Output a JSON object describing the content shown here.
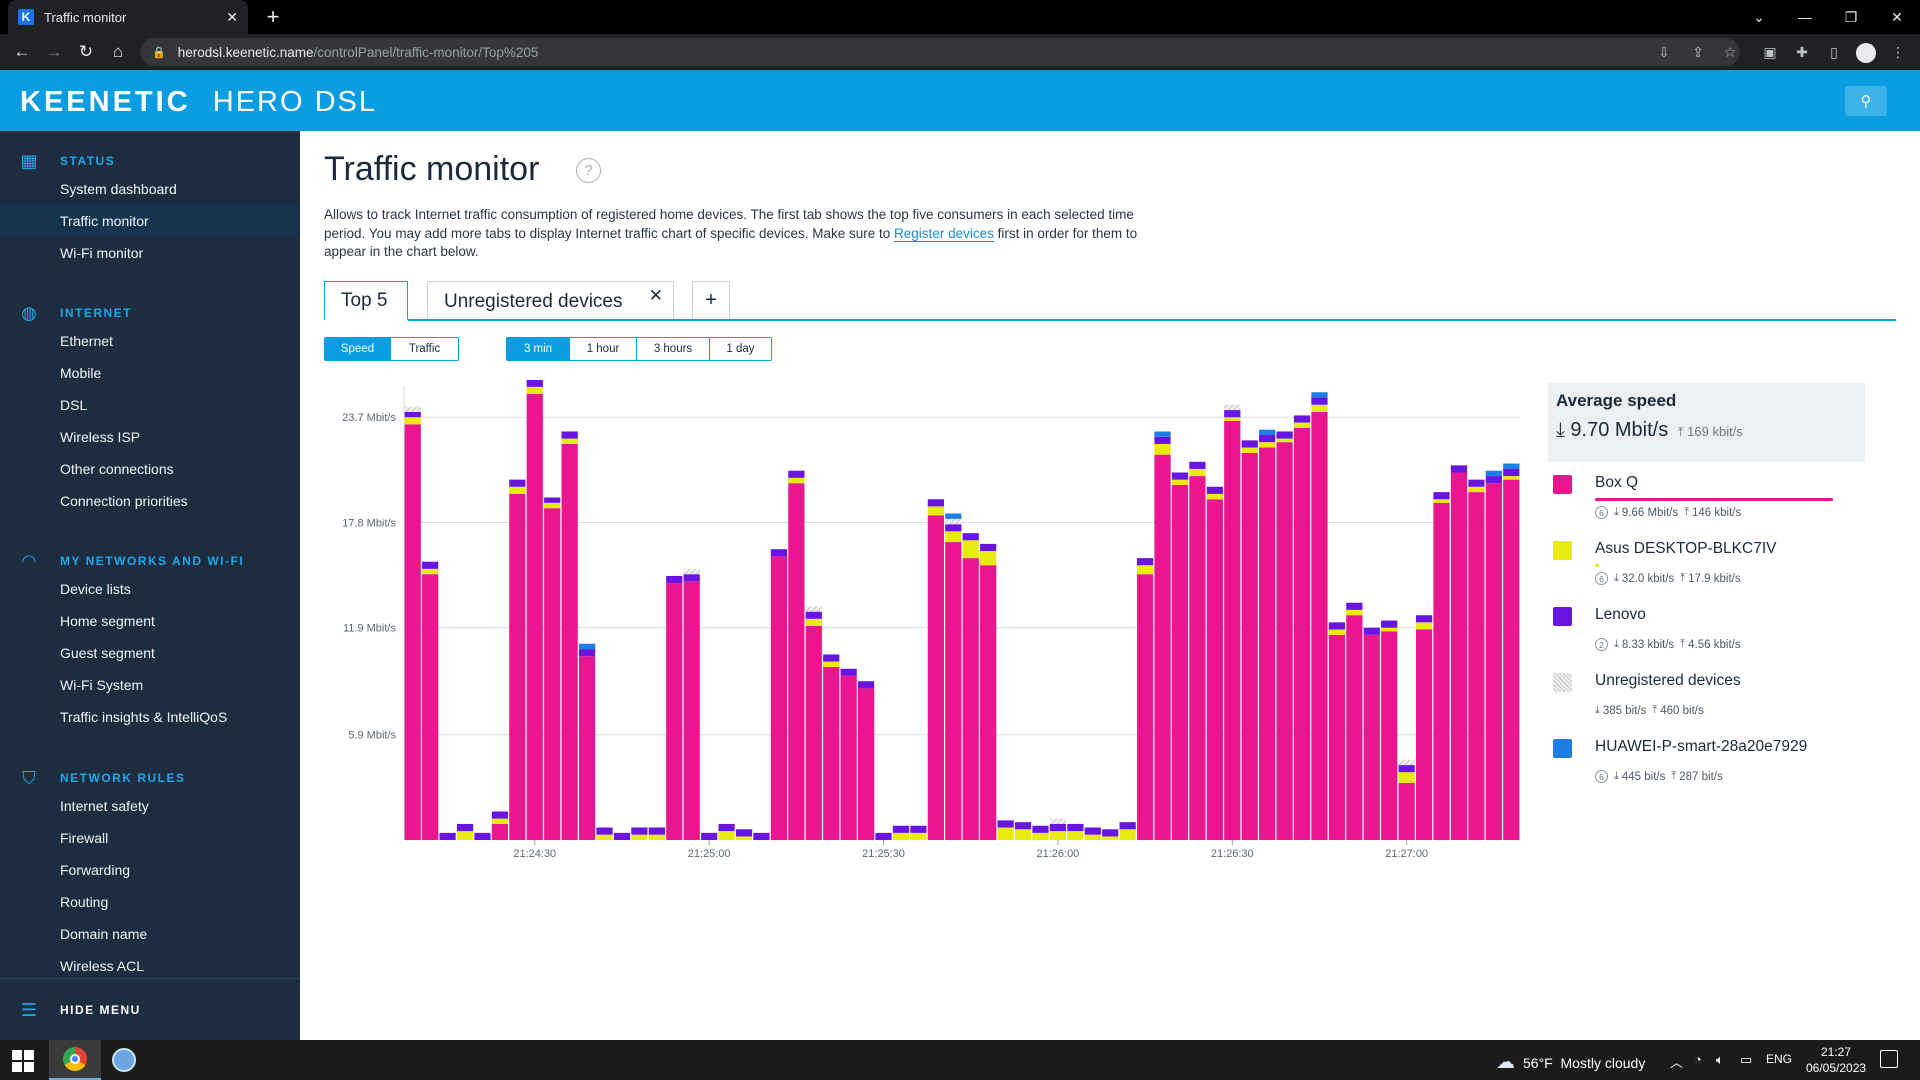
{
  "browser": {
    "tab_title": "Traffic monitor",
    "favicon_letter": "K",
    "tab_close": "✕",
    "new_tab": "+",
    "url_host": "herodsl.keenetic.name",
    "url_path": "/controlPanel/traffic-monitor/Top%205"
  },
  "header": {
    "brand_bold": "KEENETIC",
    "brand_light": "HERO DSL"
  },
  "sidebar": {
    "sections": [
      {
        "title": "STATUS",
        "icon": "dashboard-icon",
        "items": [
          "System dashboard",
          "Traffic monitor",
          "Wi-Fi monitor"
        ]
      },
      {
        "title": "INTERNET",
        "icon": "globe-icon",
        "items": [
          "Ethernet",
          "Mobile",
          "DSL",
          "Wireless ISP",
          "Other connections",
          "Connection priorities"
        ]
      },
      {
        "title": "MY NETWORKS AND WI-FI",
        "icon": "wifi-icon",
        "items": [
          "Device lists",
          "Home segment",
          "Guest segment",
          "Wi-Fi System",
          "Traffic insights & IntelliQoS"
        ]
      },
      {
        "title": "NETWORK RULES",
        "icon": "shield-icon",
        "items": [
          "Internet safety",
          "Firewall",
          "Forwarding",
          "Routing",
          "Domain name",
          "Wireless ACL"
        ]
      }
    ],
    "active_item": "Traffic monitor",
    "hide_menu": "HIDE MENU"
  },
  "page": {
    "title": "Traffic monitor",
    "help": "?",
    "desc_before": "Allows to track Internet traffic consumption of registered home devices. The first tab shows the top five consumers in each selected time period. You may add more tabs to display Internet traffic chart of specific devices. Make sure to ",
    "desc_link": "Register devices",
    "desc_after": " first in order for them to appear in the chart below.",
    "tabs": [
      {
        "label": "Top 5",
        "active": true
      },
      {
        "label": "Unregistered devices",
        "active": false,
        "close": "✕"
      }
    ],
    "add_tab": "+",
    "mode_buttons": [
      {
        "label": "Speed",
        "on": true
      },
      {
        "label": "Traffic",
        "on": false
      }
    ],
    "range_buttons": [
      {
        "label": "3 min",
        "on": true
      },
      {
        "label": "1 hour",
        "on": false
      },
      {
        "label": "3 hours",
        "on": false
      },
      {
        "label": "1 day",
        "on": false
      }
    ]
  },
  "legend": {
    "avg_title": "Average speed",
    "avg_down": "9.70 Mbit/s",
    "avg_up": "169 kbit/s",
    "items": [
      {
        "name": "Box Q",
        "color": "#e9168f",
        "count": "6",
        "down": "9.66 Mbit/s",
        "up": "146 kbit/s",
        "share": 1.0
      },
      {
        "name": "Asus DESKTOP-BLKC7IV",
        "color": "#e8ea12",
        "count": "6",
        "down": "32.0 kbit/s",
        "up": "17.9 kbit/s",
        "share": 0.01
      },
      {
        "name": "Lenovo",
        "color": "#6a14e3",
        "count": "2",
        "down": "8.33 kbit/s",
        "up": "4.56 kbit/s",
        "share": 0.0
      },
      {
        "name": "Unregistered devices",
        "color": "hatch",
        "count": "",
        "down": "385 bit/s",
        "up": "460 bit/s",
        "share": 0.0
      },
      {
        "name": "HUAWEI-P-smart-28a20e7929",
        "color": "#1f7ee6",
        "count": "6",
        "down": "445 bit/s",
        "up": "287 bit/s",
        "share": 0.0
      }
    ]
  },
  "chart_data": {
    "type": "bar",
    "stacked": true,
    "y_ticks": [
      "23.7 Mbit/s",
      "17.8 Mbit/s",
      "11.9 Mbit/s",
      "5.9 Mbit/s"
    ],
    "y_tick_values": [
      23.7,
      17.8,
      11.9,
      5.9
    ],
    "ylim": [
      0,
      25
    ],
    "x_ticks": [
      {
        "label": "21:24:30",
        "index": 7
      },
      {
        "label": "21:25:00",
        "index": 17
      },
      {
        "label": "21:25:30",
        "index": 27
      },
      {
        "label": "21:26:00",
        "index": 37
      },
      {
        "label": "21:26:30",
        "index": 47
      },
      {
        "label": "21:27:00",
        "index": 57
      }
    ],
    "grid": true,
    "series": [
      {
        "name": "Box Q",
        "color": "#e9168f",
        "values": [
          23.3,
          14.9,
          0,
          0,
          0,
          0.9,
          19.4,
          25.0,
          18.6,
          22.2,
          10.3,
          0,
          0,
          0,
          0,
          14.4,
          14.5,
          0,
          0,
          0,
          0,
          15.9,
          20.0,
          12.0,
          9.7,
          9.2,
          8.5,
          0,
          0,
          0,
          18.2,
          16.7,
          15.8,
          15.4,
          0,
          0,
          0,
          0,
          0,
          0,
          0,
          0,
          14.9,
          21.6,
          19.9,
          20.4,
          19.1,
          23.5,
          21.7,
          22.0,
          22.3,
          23.1,
          24.0,
          11.5,
          12.6,
          11.5,
          11.7,
          3.2,
          11.8,
          18.9,
          20.6,
          19.5,
          20.0,
          20.2
        ]
      },
      {
        "name": "Asus DESKTOP-BLKC7IV",
        "color": "#e8ea12",
        "values": [
          0.4,
          0.3,
          0,
          0.5,
          0,
          0.3,
          0.4,
          0.4,
          0.3,
          0.3,
          0,
          0.3,
          0,
          0.3,
          0.3,
          0,
          0,
          0,
          0.5,
          0.2,
          0,
          0,
          0.3,
          0.4,
          0.3,
          0,
          0,
          0,
          0.4,
          0.4,
          0.5,
          0.6,
          1.0,
          0.8,
          0.7,
          0.6,
          0.4,
          0.5,
          0.5,
          0.3,
          0.2,
          0.6,
          0.5,
          0.6,
          0.3,
          0.4,
          0.3,
          0.2,
          0.3,
          0.3,
          0.2,
          0.3,
          0.4,
          0.3,
          0.3,
          0,
          0.2,
          0.6,
          0.4,
          0.2,
          0,
          0.3,
          0,
          0.2
        ]
      },
      {
        "name": "Lenovo",
        "color": "#6a14e3",
        "values": [
          0.3,
          0.4,
          0.4,
          0.4,
          0.4,
          0.4,
          0.4,
          0.4,
          0.3,
          0.4,
          0.4,
          0.4,
          0.4,
          0.4,
          0.4,
          0.4,
          0.4,
          0.4,
          0.4,
          0.4,
          0.4,
          0.4,
          0.4,
          0.4,
          0.4,
          0.4,
          0.4,
          0.4,
          0.4,
          0.4,
          0.4,
          0.4,
          0.4,
          0.4,
          0.4,
          0.4,
          0.4,
          0.4,
          0.4,
          0.4,
          0.4,
          0.4,
          0.4,
          0.4,
          0.4,
          0.4,
          0.4,
          0.4,
          0.4,
          0.4,
          0.4,
          0.4,
          0.4,
          0.4,
          0.4,
          0.4,
          0.4,
          0.4,
          0.4,
          0.4,
          0.4,
          0.4,
          0.4,
          0.4
        ]
      },
      {
        "name": "Unregistered devices",
        "color": "hatch",
        "values": [
          0.3,
          0,
          0,
          0,
          0,
          0,
          0,
          0.3,
          0,
          0,
          0,
          0,
          0,
          0,
          0,
          0,
          0.3,
          0,
          0,
          0,
          0,
          0,
          0,
          0.3,
          0,
          0,
          0,
          0,
          0,
          0,
          0,
          0.3,
          0,
          0,
          0,
          0,
          0,
          0.3,
          0,
          0,
          0,
          0,
          0,
          0,
          0,
          0,
          0,
          0.3,
          0,
          0,
          0,
          0,
          0,
          0,
          0,
          0,
          0,
          0.3,
          0,
          0,
          0,
          0,
          0,
          0
        ]
      },
      {
        "name": "HUAWEI-P-smart-28a20e7929",
        "color": "#1f7ee6",
        "values": [
          0,
          0,
          0,
          0,
          0,
          0,
          0,
          0,
          0,
          0,
          0.3,
          0,
          0,
          0,
          0,
          0,
          0,
          0,
          0,
          0,
          0,
          0,
          0,
          0,
          0,
          0,
          0,
          0,
          0,
          0,
          0,
          0.3,
          0,
          0,
          0,
          0,
          0,
          0,
          0,
          0,
          0,
          0,
          0,
          0.3,
          0,
          0,
          0,
          0,
          0,
          0.3,
          0,
          0,
          0.3,
          0,
          0,
          0,
          0,
          0,
          0,
          0,
          0,
          0,
          0.3,
          0.3
        ]
      }
    ]
  },
  "taskbar": {
    "weather_temp": "56°F",
    "weather_text": "Mostly cloudy",
    "lang": "ENG",
    "time": "21:27",
    "date": "06/05/2023"
  }
}
